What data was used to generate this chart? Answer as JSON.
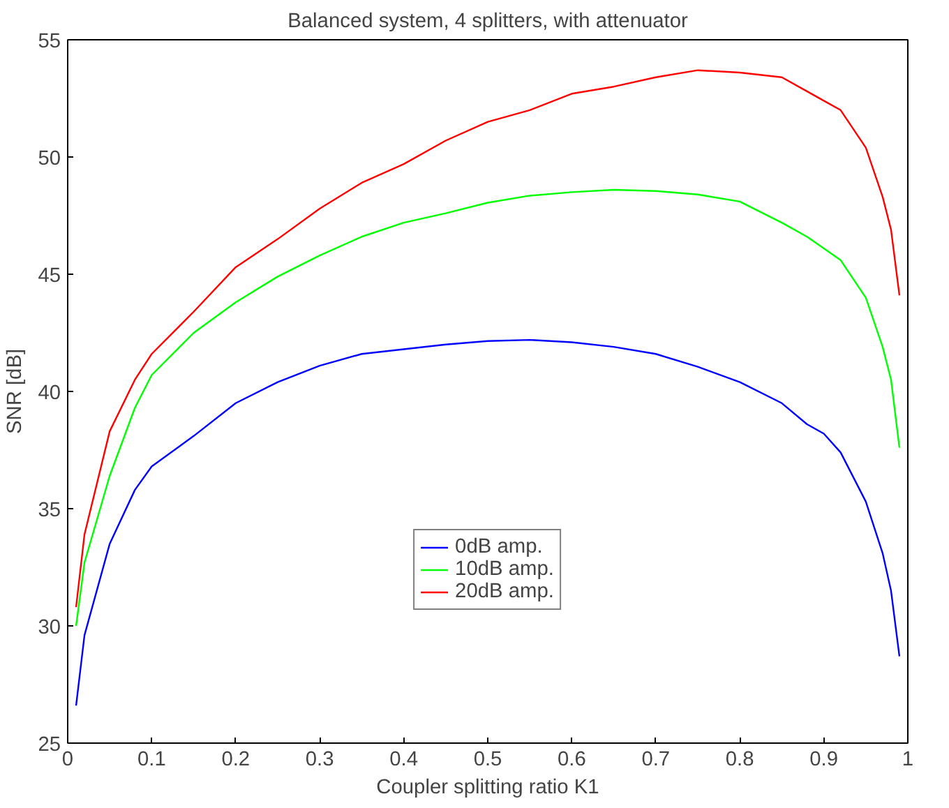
{
  "chart_data": {
    "type": "line",
    "title": "Balanced system, 4 splitters, with attenuator",
    "xlabel": "Coupler splitting ratio K1",
    "ylabel": "SNR [dB]",
    "x": [
      0.01,
      0.02,
      0.05,
      0.08,
      0.1,
      0.15,
      0.2,
      0.25,
      0.3,
      0.35,
      0.4,
      0.45,
      0.5,
      0.55,
      0.6,
      0.65,
      0.7,
      0.75,
      0.8,
      0.85,
      0.88,
      0.9,
      0.92,
      0.95,
      0.97,
      0.98,
      0.99
    ],
    "series": [
      {
        "name": "0dB amp.",
        "color": "#0000ff",
        "values": [
          26.6,
          29.6,
          33.5,
          35.8,
          36.8,
          38.1,
          39.5,
          40.4,
          41.1,
          41.6,
          41.8,
          42.0,
          42.15,
          42.2,
          42.1,
          41.9,
          41.6,
          41.05,
          40.4,
          39.5,
          38.6,
          38.2,
          37.4,
          35.3,
          33.1,
          31.5,
          28.7
        ]
      },
      {
        "name": "10dB amp.",
        "color": "#00ff00",
        "values": [
          30.0,
          32.7,
          36.4,
          39.3,
          40.7,
          42.5,
          43.8,
          44.9,
          45.8,
          46.6,
          47.2,
          47.6,
          48.05,
          48.35,
          48.5,
          48.6,
          48.55,
          48.4,
          48.1,
          47.2,
          46.6,
          46.1,
          45.6,
          44.0,
          41.9,
          40.5,
          37.6
        ]
      },
      {
        "name": "20dB amp.",
        "color": "#ff0000",
        "values": [
          30.8,
          33.9,
          38.3,
          40.5,
          41.6,
          43.4,
          45.3,
          46.5,
          47.8,
          48.9,
          49.7,
          50.7,
          51.5,
          52.0,
          52.7,
          53.0,
          53.4,
          53.7,
          53.6,
          53.4,
          52.8,
          52.4,
          52.0,
          50.4,
          48.3,
          46.9,
          44.1
        ]
      }
    ],
    "xlim": [
      0,
      1
    ],
    "ylim": [
      25,
      55
    ],
    "xticks": [
      0,
      0.1,
      0.2,
      0.3,
      0.4,
      0.5,
      0.6,
      0.7,
      0.8,
      0.9,
      1
    ],
    "yticks": [
      25,
      30,
      35,
      40,
      45,
      50,
      55
    ],
    "grid": false,
    "legend": "bottom",
    "marker": "none",
    "line_style": "solid"
  }
}
